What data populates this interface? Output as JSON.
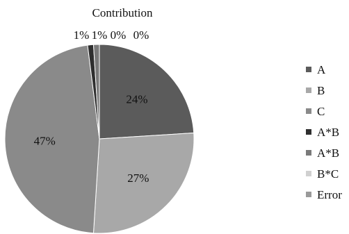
{
  "chart_data": {
    "type": "pie",
    "title": "Contribution",
    "categories": [
      "A",
      "B",
      "C",
      "A*B",
      "A*B",
      "B*C",
      "Error"
    ],
    "values": [
      24,
      27,
      47,
      1,
      1,
      0,
      0
    ],
    "value_labels": [
      "24%",
      "27%",
      "47%",
      "1%",
      "1%",
      "0%",
      "0%"
    ],
    "colors": [
      "#5b5b5b",
      "#a8a8a8",
      "#8a8a8a",
      "#2f2f2f",
      "#7a7a7a",
      "#d0d0d0",
      "#9a9a9a"
    ],
    "legend": {
      "entries": [
        "A",
        "B",
        "C",
        "A*B",
        "A*B",
        "B*C",
        "Error"
      ],
      "placement": "right"
    }
  }
}
